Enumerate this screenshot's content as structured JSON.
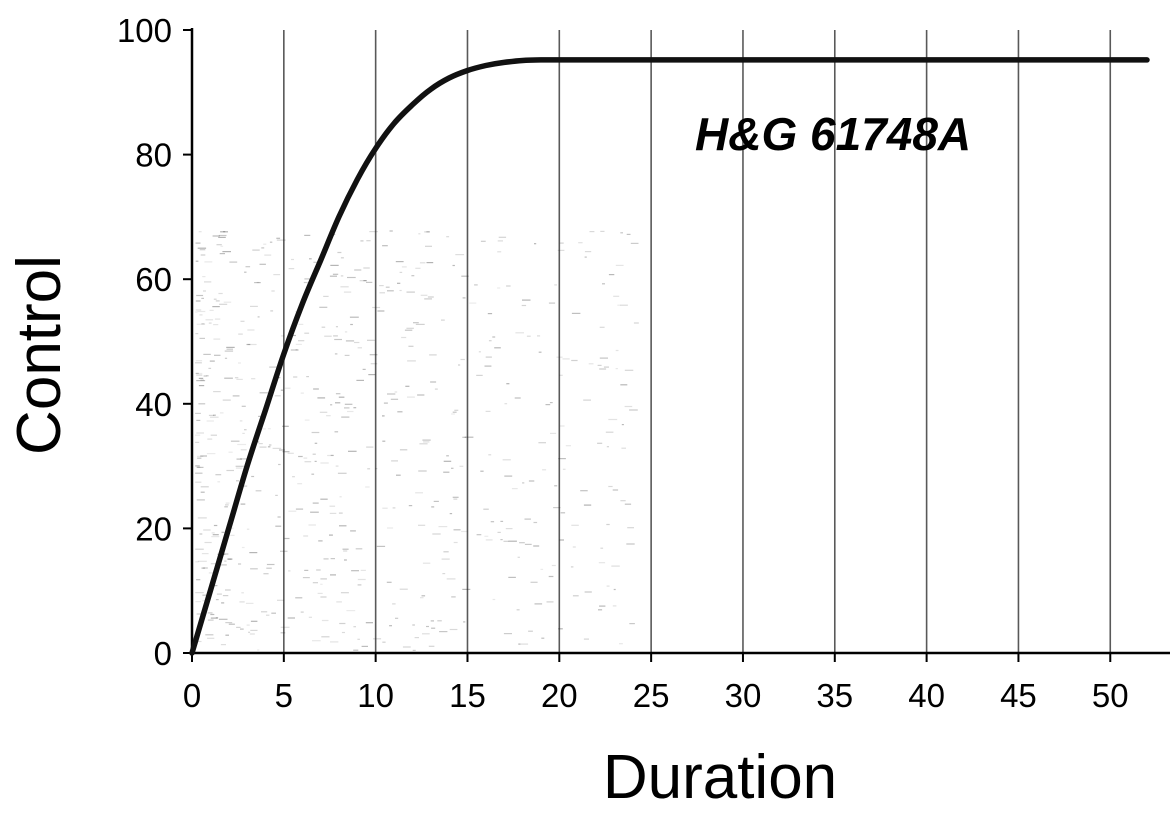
{
  "chart_data": {
    "type": "line",
    "title": "",
    "annotation": "H&G 61748A",
    "xlabel": "Duration",
    "ylabel": "Control",
    "xlim": [
      0,
      52
    ],
    "ylim": [
      0,
      100
    ],
    "x_ticks": [
      "0",
      "5",
      "10",
      "15",
      "20",
      "25",
      "30",
      "35",
      "40",
      "45",
      "50"
    ],
    "y_ticks": [
      "0",
      "20",
      "40",
      "60",
      "80",
      "100"
    ],
    "grid": "vertical lines at x = 5, 10, 15, ..., 50",
    "legend": "none",
    "series": [
      {
        "x": [
          0,
          1,
          2,
          3,
          4,
          5,
          6,
          7,
          8,
          9,
          10,
          11,
          12,
          13,
          14,
          15,
          16,
          17,
          18,
          19,
          20,
          22,
          25,
          30,
          35,
          40,
          45,
          50,
          52
        ],
        "y": [
          0,
          10,
          20,
          30,
          39,
          48,
          56,
          63,
          70,
          76,
          81,
          85,
          88,
          90.5,
          92.3,
          93.5,
          94.3,
          94.8,
          95.1,
          95.2,
          95.2,
          95.2,
          95.2,
          95.2,
          95.2,
          95.2,
          95.2,
          95.2,
          95.2
        ],
        "color": "#111111"
      }
    ]
  }
}
